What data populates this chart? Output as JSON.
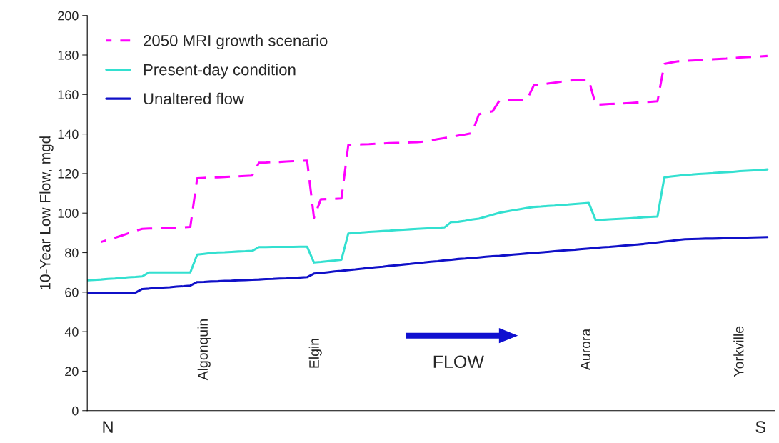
{
  "chart_data": {
    "type": "line",
    "ylabel": "10-Year Low Flow, mgd",
    "categories": [
      null,
      null,
      null,
      "N",
      null,
      null,
      null,
      null,
      null,
      null,
      null,
      null,
      null,
      null,
      null,
      null,
      null,
      null,
      null,
      null,
      null,
      null,
      null,
      null,
      null,
      null,
      null,
      null,
      null,
      null,
      null,
      null,
      null,
      null,
      null,
      null,
      null,
      null,
      null,
      null,
      null,
      null,
      null,
      null,
      null,
      null,
      null,
      null,
      null,
      null,
      null,
      null,
      null,
      null,
      null,
      null,
      null,
      null,
      null,
      null,
      null,
      null,
      null,
      null,
      null,
      null,
      null,
      null,
      null,
      null,
      null,
      null,
      null,
      null,
      null,
      null,
      null,
      null,
      null,
      null,
      null,
      null,
      null,
      null,
      null,
      null,
      null,
      null,
      null,
      null,
      null,
      null,
      null,
      null,
      null,
      null,
      null,
      null,
      "S",
      null,
      null
    ],
    "ylim": [
      0,
      200
    ],
    "yticks": [
      0,
      20,
      40,
      60,
      80,
      100,
      120,
      140,
      160,
      180,
      200
    ],
    "grid": false,
    "legend": "top left",
    "series": [
      {
        "name": "2050 MRI growth scenario",
        "color": "#ff00ff",
        "line_style": "dashed",
        "values": [
          null,
          null,
          85.4,
          86.5,
          87.5,
          88.6,
          89.8,
          91.0,
          92.0,
          92.2,
          92.3,
          92.4,
          92.6,
          92.7,
          92.8,
          93.0,
          117.6,
          117.8,
          118.0,
          118.1,
          118.3,
          118.5,
          118.6,
          118.8,
          119.0,
          125.5,
          125.6,
          125.8,
          125.9,
          126.1,
          126.3,
          126.4,
          126.6,
          97.6,
          107.0,
          107.1,
          107.2,
          107.4,
          134.5,
          134.6,
          134.8,
          134.9,
          135.1,
          135.2,
          135.4,
          135.5,
          135.6,
          135.8,
          135.9,
          136.2,
          136.8,
          137.4,
          138.0,
          138.6,
          139.2,
          139.8,
          140.5,
          150.0,
          151.0,
          151.5,
          157.0,
          157.1,
          157.2,
          157.3,
          157.4,
          164.7,
          165.0,
          165.5,
          166.0,
          166.5,
          167.0,
          167.3,
          167.4,
          167.4,
          154.8,
          155.0,
          155.2,
          155.3,
          155.5,
          155.7,
          155.9,
          156.1,
          156.3,
          156.6,
          175.5,
          176.2,
          176.8,
          177.0,
          177.2,
          177.4,
          177.6,
          177.8,
          178.0,
          178.2,
          178.5,
          178.7,
          178.9,
          179.1,
          179.3,
          179.5,
          null
        ]
      },
      {
        "name": "Present-day condition",
        "color": "#33e0d0",
        "line_style": "solid",
        "values": [
          66,
          66.2,
          66.4,
          66.7,
          66.9,
          67.2,
          67.5,
          67.7,
          68.0,
          70,
          70,
          70,
          70,
          70,
          70,
          70,
          79.0,
          79.4,
          79.8,
          80.1,
          80.2,
          80.4,
          80.6,
          80.7,
          80.9,
          82.8,
          82.8,
          82.9,
          82.9,
          82.9,
          82.9,
          83.0,
          83.0,
          75.0,
          75.3,
          75.7,
          76.0,
          76.4,
          89.7,
          89.9,
          90.2,
          90.5,
          90.7,
          90.9,
          91.1,
          91.4,
          91.6,
          91.8,
          92.0,
          92.2,
          92.4,
          92.6,
          92.8,
          95.5,
          95.6,
          96.1,
          96.7,
          97.2,
          98.2,
          99.2,
          100.2,
          100.8,
          101.4,
          102.0,
          102.6,
          103.1,
          103.3,
          103.6,
          103.8,
          104.1,
          104.3,
          104.6,
          104.9,
          105.1,
          96.4,
          96.6,
          96.8,
          97.0,
          97.2,
          97.4,
          97.6,
          97.9,
          98.1,
          98.3,
          118.1,
          118.5,
          118.9,
          119.3,
          119.5,
          119.8,
          120.0,
          120.2,
          120.5,
          120.7,
          120.9,
          121.2,
          121.4,
          121.6,
          121.8,
          122.1,
          null
        ]
      },
      {
        "name": "Unaltered flow",
        "color": "#1010c8",
        "line_style": "solid",
        "values": [
          59.7,
          59.7,
          59.7,
          59.7,
          59.7,
          59.7,
          59.7,
          59.7,
          61.6,
          61.8,
          62.1,
          62.3,
          62.5,
          62.8,
          63.0,
          63.3,
          65.1,
          65.2,
          65.4,
          65.5,
          65.7,
          65.8,
          66.0,
          66.1,
          66.3,
          66.4,
          66.6,
          66.7,
          66.9,
          67.0,
          67.2,
          67.4,
          67.6,
          69.4,
          69.7,
          70.1,
          70.5,
          70.8,
          71.2,
          71.5,
          71.9,
          72.2,
          72.6,
          72.9,
          73.3,
          73.6,
          74.0,
          74.3,
          74.7,
          75.0,
          75.4,
          75.7,
          76.1,
          76.4,
          76.8,
          77.0,
          77.3,
          77.6,
          77.9,
          78.2,
          78.4,
          78.7,
          79.0,
          79.3,
          79.6,
          79.8,
          80.1,
          80.4,
          80.7,
          81.0,
          81.3,
          81.5,
          81.8,
          82.1,
          82.4,
          82.7,
          82.9,
          83.2,
          83.5,
          83.8,
          84.1,
          84.4,
          84.8,
          85.2,
          85.6,
          86.0,
          86.4,
          86.8,
          86.9,
          87.0,
          87.1,
          87.1,
          87.2,
          87.3,
          87.4,
          87.5,
          87.6,
          87.7,
          87.8,
          87.9,
          null
        ]
      }
    ],
    "annotations": [
      "Algonquin",
      "Elgin",
      "Aurora",
      "Yorkville",
      "FLOW"
    ]
  }
}
